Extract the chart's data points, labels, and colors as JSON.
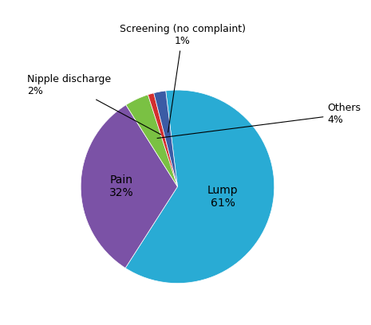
{
  "values": [
    61,
    32,
    4,
    1,
    2
  ],
  "colors": [
    "#29ABD4",
    "#7B52A6",
    "#7AC143",
    "#D32F2F",
    "#3B5BA5"
  ],
  "startangle": 97,
  "lump_label": "Lump\n61%",
  "pain_label": "Pain\n32%",
  "lump_r": 0.48,
  "pain_r": 0.58,
  "background_color": "#ffffff",
  "figsize": [
    4.65,
    4.08
  ],
  "dpi": 100,
  "annotation_fontsize": 9,
  "inside_label_fontsize": 10,
  "others_label": "Others\n4%",
  "screening_label": "Screening (no complaint)\n1%",
  "nipple_label": "Nipple discharge\n2%"
}
